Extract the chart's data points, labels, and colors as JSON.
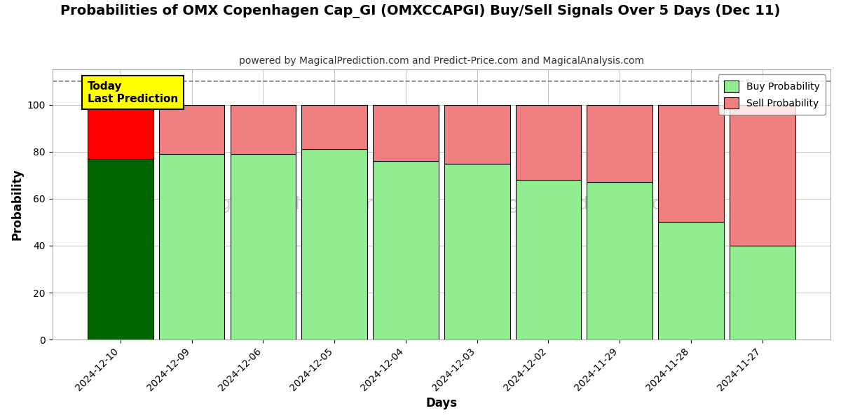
{
  "title": "Probabilities of OMX Copenhagen Cap_GI (OMXCCAPGI) Buy/Sell Signals Over 5 Days (Dec 11)",
  "subtitle": "powered by MagicalPrediction.com and Predict-Price.com and MagicalAnalysis.com",
  "xlabel": "Days",
  "ylabel": "Probability",
  "categories": [
    "2024-12-10",
    "2024-12-09",
    "2024-12-06",
    "2024-12-05",
    "2024-12-04",
    "2024-12-03",
    "2024-12-02",
    "2024-11-29",
    "2024-11-28",
    "2024-11-27"
  ],
  "buy_values": [
    77,
    79,
    79,
    81,
    76,
    75,
    68,
    67,
    50,
    40
  ],
  "sell_values": [
    23,
    21,
    21,
    19,
    24,
    25,
    32,
    33,
    50,
    60
  ],
  "today_bar_buy_color": "#006400",
  "today_bar_sell_color": "#FF0000",
  "other_bar_buy_color": "#90EE90",
  "other_bar_sell_color": "#F08080",
  "bar_edge_color": "#000000",
  "legend_buy_color": "#90EE90",
  "legend_sell_color": "#F08080",
  "annotation_text": "Today\nLast Prediction",
  "annotation_bg_color": "#FFFF00",
  "annotation_font_size": 11,
  "ylim": [
    0,
    115
  ],
  "yticks": [
    0,
    20,
    40,
    60,
    80,
    100
  ],
  "dashed_line_y": 110,
  "title_fontsize": 14,
  "subtitle_fontsize": 10,
  "axis_label_fontsize": 12,
  "tick_fontsize": 10,
  "watermark_color": "#C8C8C8",
  "figure_bg_color": "#FFFFFF",
  "axes_bg_color": "#FFFFFF",
  "grid_color": "#AAAAAA",
  "grid_alpha": 0.7,
  "bar_width": 0.92
}
